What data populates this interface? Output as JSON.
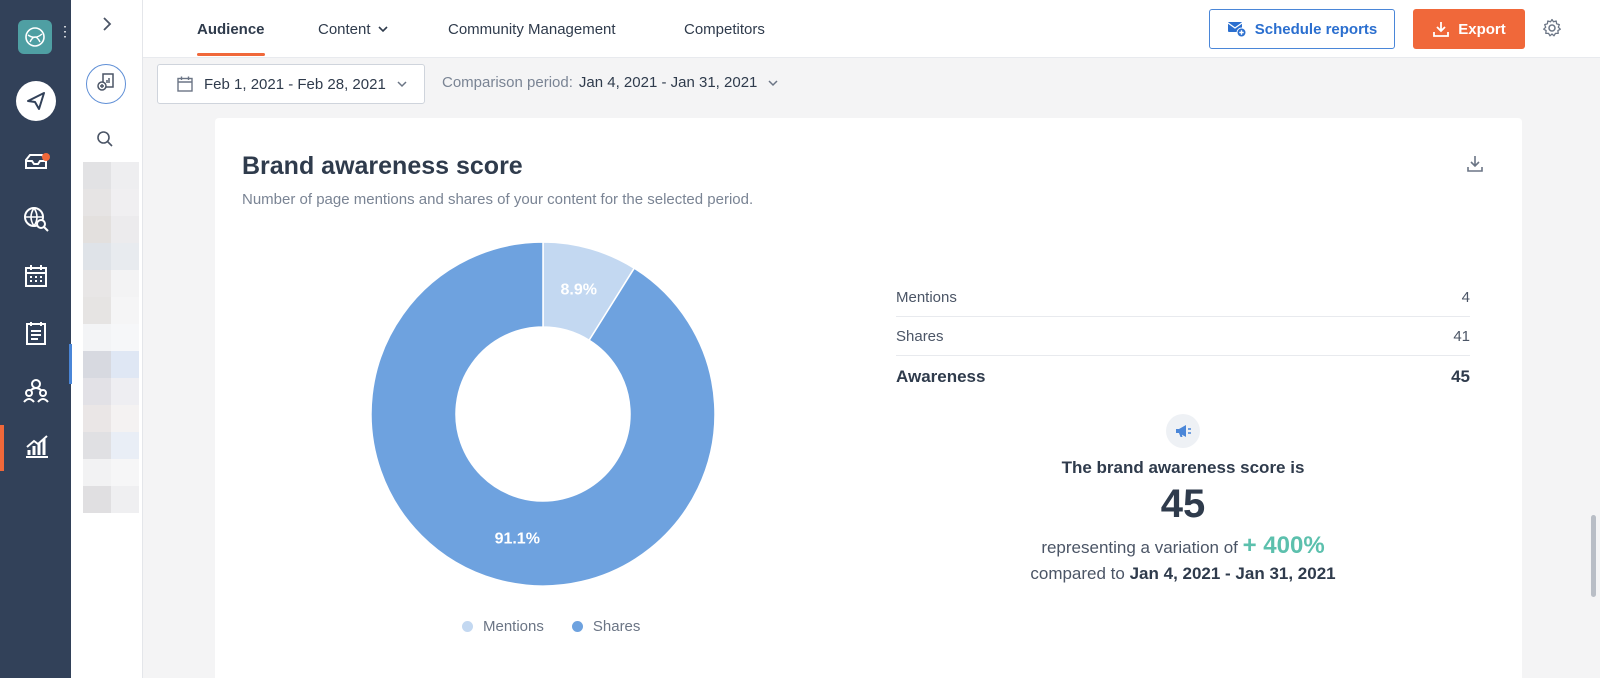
{
  "tabs": [
    {
      "label": "Audience",
      "active": true
    },
    {
      "label": "Content",
      "has_dropdown": true
    },
    {
      "label": "Community Management"
    },
    {
      "label": "Competitors"
    }
  ],
  "actions": {
    "schedule_label": "Schedule reports",
    "export_label": "Export"
  },
  "filters": {
    "date_range": "Feb 1, 2021 - Feb 28, 2021",
    "comparison_label": "Comparison period:",
    "comparison_value": "Jan 4, 2021 - Jan 31, 2021"
  },
  "card": {
    "title": "Brand awareness score",
    "subtitle": "Number of page mentions and shares of your content for the selected period."
  },
  "chart_data": {
    "type": "pie",
    "donut": true,
    "categories": [
      "Mentions",
      "Shares"
    ],
    "values": [
      8.9,
      91.1
    ],
    "labels": [
      "8.9%",
      "91.1%"
    ],
    "colors": [
      "#c3d8f1",
      "#6ea2df"
    ],
    "legend_position": "bottom"
  },
  "stats": [
    {
      "label": "Mentions",
      "value": "4"
    },
    {
      "label": "Shares",
      "value": "41"
    },
    {
      "label": "Awareness",
      "value": "45"
    }
  ],
  "summary": {
    "line1": "The brand awareness score is",
    "score": "45",
    "variation_prefix": "representing a variation of",
    "variation": "+ 400%",
    "compared_prefix": "compared to",
    "compared_period": "Jan 4, 2021 - Jan 31, 2021"
  },
  "colors": {
    "rail": "#324159",
    "accent": "#f0683a",
    "primary_blue": "#2b6fcf",
    "positive": "#5cc0ad"
  },
  "icons": [
    "app-logo-icon",
    "paper-plane-icon",
    "inbox-icon",
    "globe-search-icon",
    "calendar-icon",
    "report-icon",
    "people-icon",
    "analytics-icon",
    "chevron-right-icon",
    "add-page-icon",
    "search-icon",
    "mail-plus-icon",
    "download-icon",
    "gear-icon",
    "megaphone-icon"
  ]
}
